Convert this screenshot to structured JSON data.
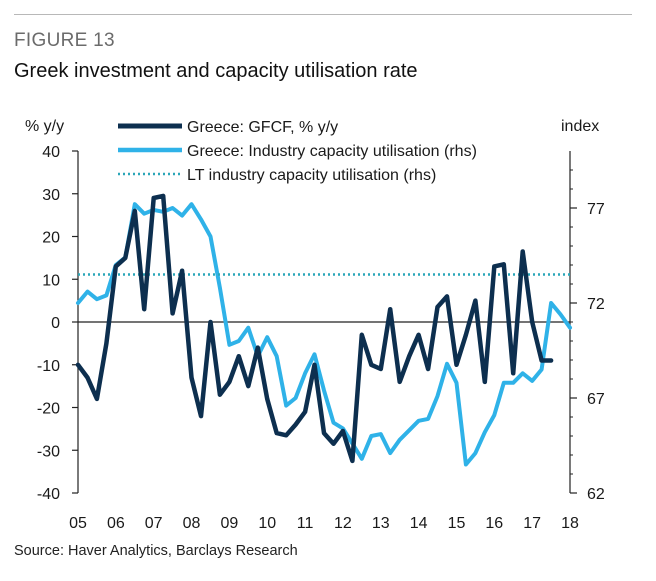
{
  "figure_label": "FIGURE 13",
  "title": "Greek investment and capacity utilisation rate",
  "source": "Source: Haver Analytics, Barclays Research",
  "chart_data": {
    "type": "line",
    "left_axis_label": "% y/y",
    "right_axis_label": "index",
    "x_ticks": [
      "05",
      "06",
      "07",
      "08",
      "09",
      "10",
      "11",
      "12",
      "13",
      "14",
      "15",
      "16",
      "17",
      "18"
    ],
    "y_left_ticks": [
      "40",
      "30",
      "20",
      "10",
      "0",
      "-10",
      "-20",
      "-30",
      "-40"
    ],
    "y_right_ticks": [
      "77",
      "72",
      "67",
      "62"
    ],
    "ylim_left": [
      -40,
      40
    ],
    "ylim_right": [
      62,
      80
    ],
    "xlim": [
      2005,
      2018
    ],
    "grid": false,
    "legend_position": "top",
    "series": [
      {
        "name": "Greece: GFCF, % y/y",
        "axis": "left",
        "color": "#0d2f4f",
        "style": "solid",
        "x": [
          2005.0,
          2005.25,
          2005.5,
          2005.75,
          2006.0,
          2006.25,
          2006.5,
          2006.75,
          2007.0,
          2007.25,
          2007.5,
          2007.75,
          2008.0,
          2008.25,
          2008.5,
          2008.75,
          2009.0,
          2009.25,
          2009.5,
          2009.75,
          2010.0,
          2010.25,
          2010.5,
          2010.75,
          2011.0,
          2011.25,
          2011.5,
          2011.75,
          2012.0,
          2012.25,
          2012.5,
          2012.75,
          2013.0,
          2013.25,
          2013.5,
          2013.75,
          2014.0,
          2014.25,
          2014.5,
          2014.75,
          2015.0,
          2015.25,
          2015.5,
          2015.75,
          2016.0,
          2016.25,
          2016.5,
          2016.75,
          2017.0,
          2017.25,
          2017.5
        ],
        "y": [
          -10,
          -13,
          -18,
          -5,
          13,
          15,
          26,
          3,
          29,
          29.5,
          2,
          12,
          -13,
          -22,
          0,
          -17,
          -14,
          -8,
          -15,
          -6,
          -18,
          -26,
          -26.5,
          -24,
          -21,
          -10,
          -26,
          -28.5,
          -25.5,
          -32.5,
          -3,
          -10,
          -11,
          3,
          -14,
          -8,
          -3,
          -11,
          3.5,
          6,
          -10,
          -3,
          5,
          -14,
          13,
          13.5,
          -12,
          16.5,
          0,
          -9,
          -9
        ]
      },
      {
        "name": "Greece: Industry capacity utilisation (rhs)",
        "axis": "right",
        "color": "#2fb2e8",
        "style": "solid",
        "x": [
          2005.0,
          2005.25,
          2005.5,
          2005.75,
          2006.0,
          2006.25,
          2006.5,
          2006.75,
          2007.0,
          2007.25,
          2007.5,
          2007.75,
          2008.0,
          2008.25,
          2008.5,
          2008.75,
          2009.0,
          2009.25,
          2009.5,
          2009.75,
          2010.0,
          2010.25,
          2010.5,
          2010.75,
          2011.0,
          2011.25,
          2011.5,
          2011.75,
          2012.0,
          2012.25,
          2012.5,
          2012.75,
          2013.0,
          2013.25,
          2013.5,
          2013.75,
          2014.0,
          2014.25,
          2014.5,
          2014.75,
          2015.0,
          2015.25,
          2015.5,
          2015.75,
          2016.0,
          2016.25,
          2016.5,
          2016.75,
          2017.0,
          2017.25,
          2017.5,
          2017.75,
          2018.0
        ],
        "y": [
          72.0,
          72.6,
          72.2,
          72.4,
          74.0,
          74.4,
          77.2,
          76.7,
          76.9,
          76.8,
          77.0,
          76.6,
          77.2,
          76.4,
          75.5,
          72.8,
          69.8,
          70.0,
          70.7,
          69.2,
          70.2,
          69.2,
          66.6,
          67.0,
          68.3,
          69.3,
          67.4,
          65.7,
          65.4,
          64.6,
          63.8,
          65.0,
          65.1,
          64.1,
          64.8,
          65.3,
          65.8,
          65.9,
          67.1,
          68.8,
          67.8,
          63.5,
          64.1,
          65.2,
          66.1,
          67.8,
          67.8,
          68.3,
          67.9,
          68.5,
          72.0,
          71.4,
          70.7
        ]
      },
      {
        "name": "LT industry capacity utilisation (rhs)",
        "axis": "right",
        "color": "#2aa6b8",
        "style": "dotted",
        "x": [
          2005.0,
          2018.0
        ],
        "y": [
          73.5,
          73.5
        ]
      }
    ]
  }
}
